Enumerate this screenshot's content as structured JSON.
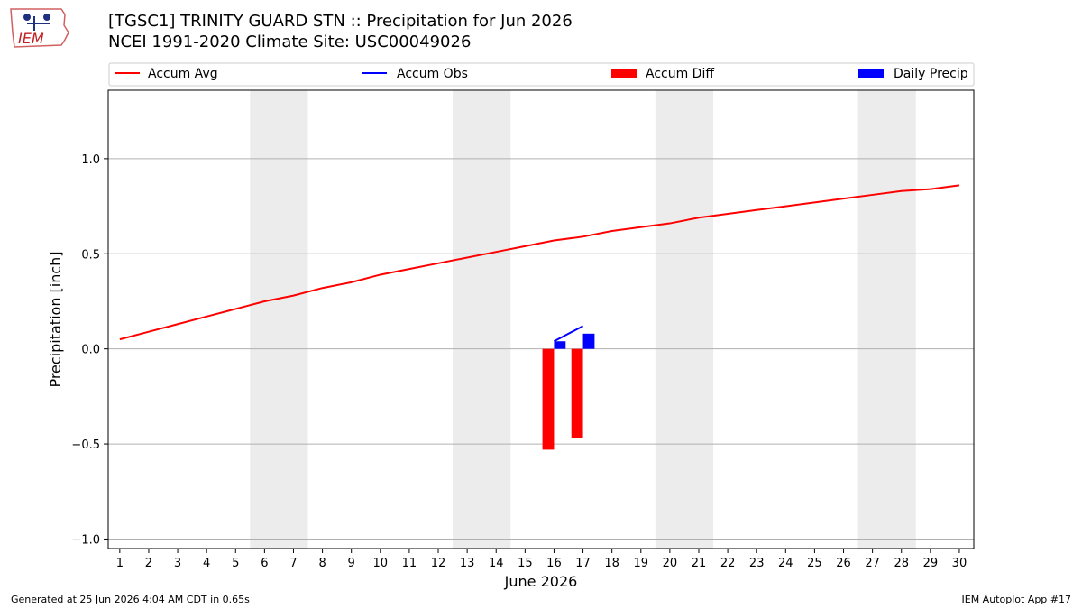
{
  "header": {
    "title_line1": "[TGSC1] TRINITY GUARD STN :: Precipitation for Jun 2026",
    "title_line2": "NCEI 1991-2020 Climate Site: USC00049026",
    "logo_text": "IEM"
  },
  "footer": {
    "left": "Generated at 25 Jun 2026 4:04 AM CDT in 0.65s",
    "right": "IEM Autoplot App #17"
  },
  "colors": {
    "accum_avg": "#ff0000",
    "accum_obs": "#0000ff",
    "accum_diff": "#ff0000",
    "daily_precip": "#0000ff",
    "weekend_shade": "#ececec",
    "grid": "#b0b0b0"
  },
  "chart_data": {
    "type": "line",
    "xlabel": "June 2026",
    "ylabel": "Precipitation [inch]",
    "ylim": [
      -1.05,
      1.36
    ],
    "xlim": [
      0.6,
      30.5
    ],
    "y_ticks": [
      -1.0,
      -0.5,
      0.0,
      0.5,
      1.0
    ],
    "y_tick_labels": [
      "−1.0",
      "−0.5",
      "0.0",
      "0.5",
      "1.0"
    ],
    "x": [
      1,
      2,
      3,
      4,
      5,
      6,
      7,
      8,
      9,
      10,
      11,
      12,
      13,
      14,
      15,
      16,
      17,
      18,
      19,
      20,
      21,
      22,
      23,
      24,
      25,
      26,
      27,
      28,
      29,
      30
    ],
    "x_tick_labels": [
      "1",
      "2",
      "3",
      "4",
      "5",
      "6",
      "7",
      "8",
      "9",
      "10",
      "11",
      "12",
      "13",
      "14",
      "15",
      "16",
      "17",
      "18",
      "19",
      "20",
      "21",
      "22",
      "23",
      "24",
      "25",
      "26",
      "27",
      "28",
      "29",
      "30"
    ],
    "grid": "horizontal",
    "legend_position": "top",
    "legend": [
      "Accum Avg",
      "Accum Obs",
      "Accum Diff",
      "Daily Precip"
    ],
    "shaded_ranges": [
      [
        5.5,
        7.5
      ],
      [
        12.5,
        14.5
      ],
      [
        19.5,
        21.5
      ],
      [
        26.5,
        28.5
      ]
    ],
    "series": [
      {
        "name": "Accum Avg",
        "type": "line",
        "x": [
          1,
          2,
          3,
          4,
          5,
          6,
          7,
          8,
          9,
          10,
          11,
          12,
          13,
          14,
          15,
          16,
          17,
          18,
          19,
          20,
          21,
          22,
          23,
          24,
          25,
          26,
          27,
          28,
          29,
          30
        ],
        "values": [
          0.05,
          0.09,
          0.13,
          0.17,
          0.21,
          0.25,
          0.28,
          0.32,
          0.35,
          0.39,
          0.42,
          0.45,
          0.48,
          0.51,
          0.54,
          0.57,
          0.59,
          0.62,
          0.64,
          0.66,
          0.69,
          0.71,
          0.73,
          0.75,
          0.77,
          0.79,
          0.81,
          0.83,
          0.84,
          0.86
        ]
      },
      {
        "name": "Accum Obs",
        "type": "line",
        "x": [
          16,
          17
        ],
        "values": [
          0.04,
          0.12
        ]
      },
      {
        "name": "Accum Diff",
        "type": "bar",
        "x": [
          16,
          17
        ],
        "values": [
          -0.53,
          -0.47
        ]
      },
      {
        "name": "Daily Precip",
        "type": "bar",
        "x": [
          16,
          17
        ],
        "values": [
          0.04,
          0.08
        ]
      }
    ]
  }
}
